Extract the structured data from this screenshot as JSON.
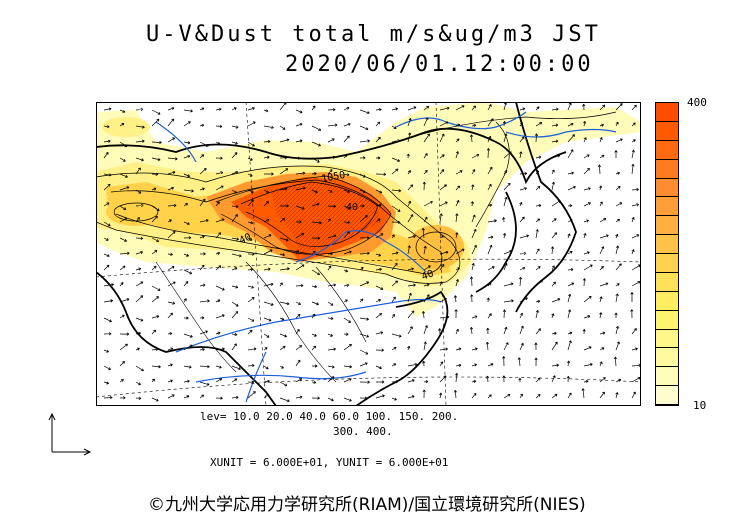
{
  "title_line1": "U-V&Dust total m/s&ug/m3 JST",
  "title_line2": "2020/06/01.12:00:00",
  "colorbar": {
    "max_label": "400",
    "min_label": "10",
    "colors": [
      "#ff4d00",
      "#ff5a00",
      "#ff6a10",
      "#ff7b20",
      "#ff8c30",
      "#ff9e38",
      "#ffb040",
      "#ffc248",
      "#ffd250",
      "#ffe058",
      "#ffee60",
      "#fff470",
      "#fff888",
      "#fffaa0",
      "#fffbb8",
      "#fffcd0"
    ]
  },
  "contour_levels_line1": "lev= 10.0 20.0 40.0 60.0 100. 150. 200.",
  "contour_levels_line2": "300. 400.",
  "unit_note": "XUNIT = 6.000E+01, YUNIT = 6.000E+01",
  "contour_labels": [
    "1050",
    "40",
    "40",
    "40"
  ],
  "copyright": "©九州大学応用力学研究所(RIAM)/国立環境研究所(NIES)"
}
